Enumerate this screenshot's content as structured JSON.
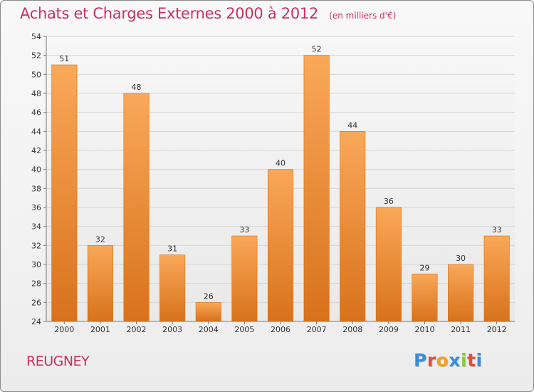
{
  "chart_data": {
    "type": "bar",
    "title": "Achats et Charges Externes 2000 à 2012",
    "subtitle": "(en milliers d'€)",
    "categories": [
      "2000",
      "2001",
      "2002",
      "2003",
      "2004",
      "2005",
      "2006",
      "2007",
      "2008",
      "2009",
      "2010",
      "2011",
      "2012"
    ],
    "values": [
      51,
      32,
      48,
      31,
      26,
      33,
      40,
      52,
      44,
      36,
      29,
      30,
      33
    ],
    "ylim": [
      24,
      54
    ],
    "yticks": [
      24,
      26,
      28,
      30,
      32,
      34,
      36,
      38,
      40,
      42,
      44,
      46,
      48,
      50,
      52,
      54
    ],
    "grid": true,
    "bar_color_light": "#f9a859",
    "bar_color_dark": "#d8721c"
  },
  "footer": {
    "commune": "REUGNEY",
    "logo_text": "Proxiti",
    "logo_colors": [
      "#3b8ed6",
      "#e84b34",
      "#f2a11a",
      "#3b8ed6",
      "#8cc63f",
      "#e84b34",
      "#3b8ed6"
    ]
  }
}
